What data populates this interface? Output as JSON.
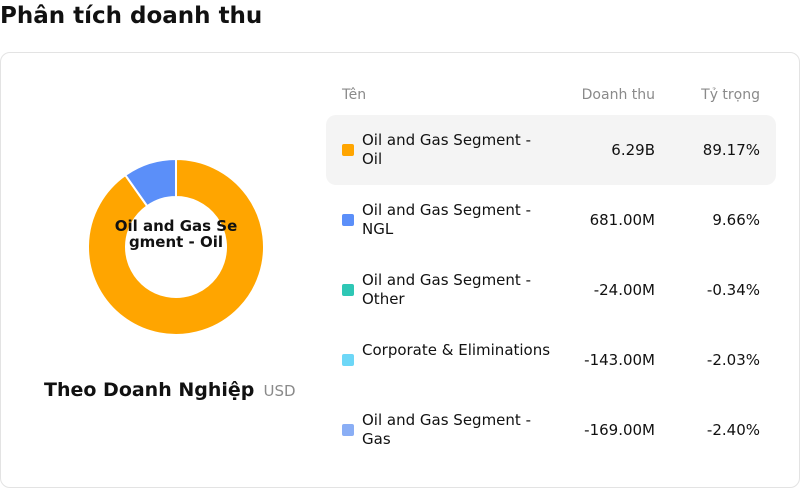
{
  "page": {
    "title": "Phân tích doanh thu"
  },
  "panel": {
    "title": "Theo Doanh Nghiệp",
    "unit": "USD",
    "center_label": "Oil and Gas Segment - Oil"
  },
  "table": {
    "headers": {
      "name": "Tên",
      "revenue": "Doanh thu",
      "share": "Tỷ trọng"
    },
    "rows": [
      {
        "name": "Oil and Gas Segment - Oil",
        "revenue": "6.29B",
        "share": "89.17%",
        "color": "#ffa500"
      },
      {
        "name": "Oil and Gas Segment - NGL",
        "revenue": "681.00M",
        "share": "9.66%",
        "color": "#5b8ff9"
      },
      {
        "name": "Oil and Gas Segment - Other",
        "revenue": "-24.00M",
        "share": "-0.34%",
        "color": "#2ec7b5"
      },
      {
        "name": "Corporate & Eliminations",
        "revenue": "-143.00M",
        "share": "-2.03%",
        "color": "#6dd7f7"
      },
      {
        "name": "Oil and Gas Segment - Gas",
        "revenue": "-169.00M",
        "share": "-2.40%",
        "color": "#8aaef5"
      }
    ]
  },
  "chart_data": {
    "type": "pie",
    "variant": "donut",
    "slices": [
      {
        "label": "Oil and Gas Segment - Oil",
        "value": 89.17,
        "color": "#ffa500"
      },
      {
        "label": "Oil and Gas Segment - NGL",
        "value": 9.66,
        "color": "#5b8ff9"
      }
    ],
    "title": "",
    "legend": "table-right"
  }
}
